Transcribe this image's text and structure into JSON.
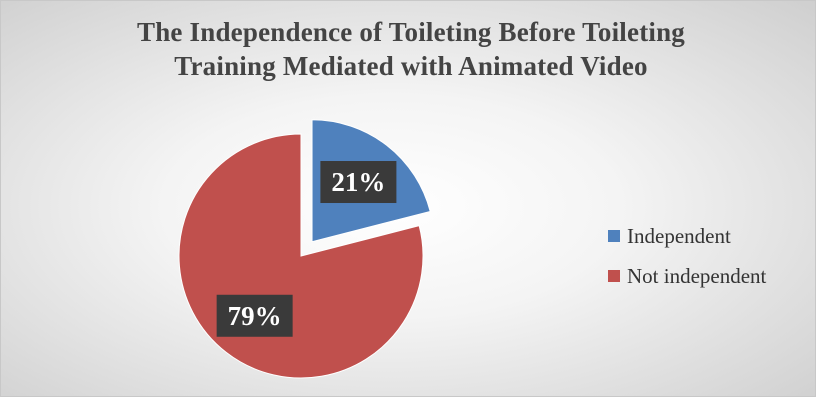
{
  "chart_data": {
    "type": "pie",
    "title": "The Independence of Toileting Before Toileting Training Mediated with Animated Video",
    "title_lines": [
      "The Independence of Toileting Before Toileting",
      "Training Mediated with Animated Video"
    ],
    "slices": [
      {
        "label": "Independent",
        "value": 21,
        "display": "21%",
        "color": "#4f81bd",
        "exploded": true
      },
      {
        "label": "Not independent",
        "value": 79,
        "display": "79%",
        "color": "#c0504d",
        "exploded": false
      }
    ],
    "legend_position": "right",
    "data_labels": true
  }
}
